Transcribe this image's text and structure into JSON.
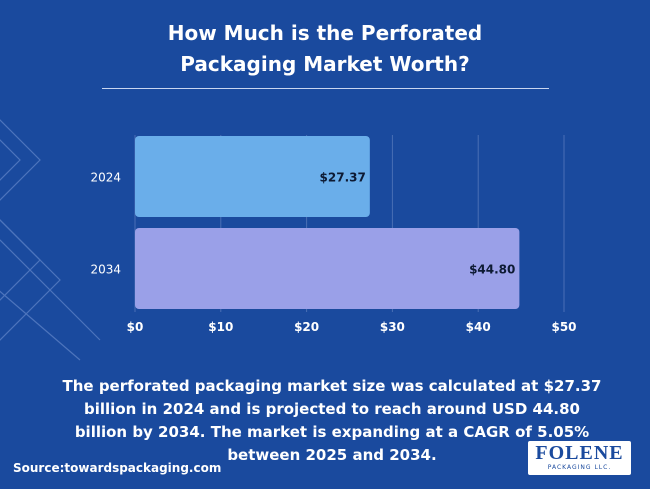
{
  "title_line1": "How Much is the Perforated",
  "title_line2": "Packaging Market Worth?",
  "description": "The perforated packaging market size was calculated at $27.37 billion in 2024 and is projected to reach around USD 44.80 billion by 2034. The market is expanding at a CAGR of 5.05% between 2025 and 2034.",
  "source": "Source:towardspackaging.com",
  "logo": {
    "name": "FOLENE",
    "subtitle": "PACKAGING LLC."
  },
  "colors": {
    "background": "#1a4a9e",
    "bar_2024": "#6aaeea",
    "bar_2034": "#9aa0e8",
    "text": "#ffffff",
    "value_label": "#0d1a33"
  },
  "chart_data": {
    "type": "bar",
    "orientation": "horizontal",
    "categories": [
      "2024",
      "2034"
    ],
    "values": [
      27.37,
      44.8
    ],
    "value_labels": [
      "$27.37",
      "$44.80"
    ],
    "xlim": [
      0,
      50
    ],
    "x_ticks": [
      0,
      10,
      20,
      30,
      40,
      50
    ],
    "x_tick_labels": [
      "$0",
      "$10",
      "$20",
      "$30",
      "$40",
      "$50"
    ],
    "grid": true
  }
}
